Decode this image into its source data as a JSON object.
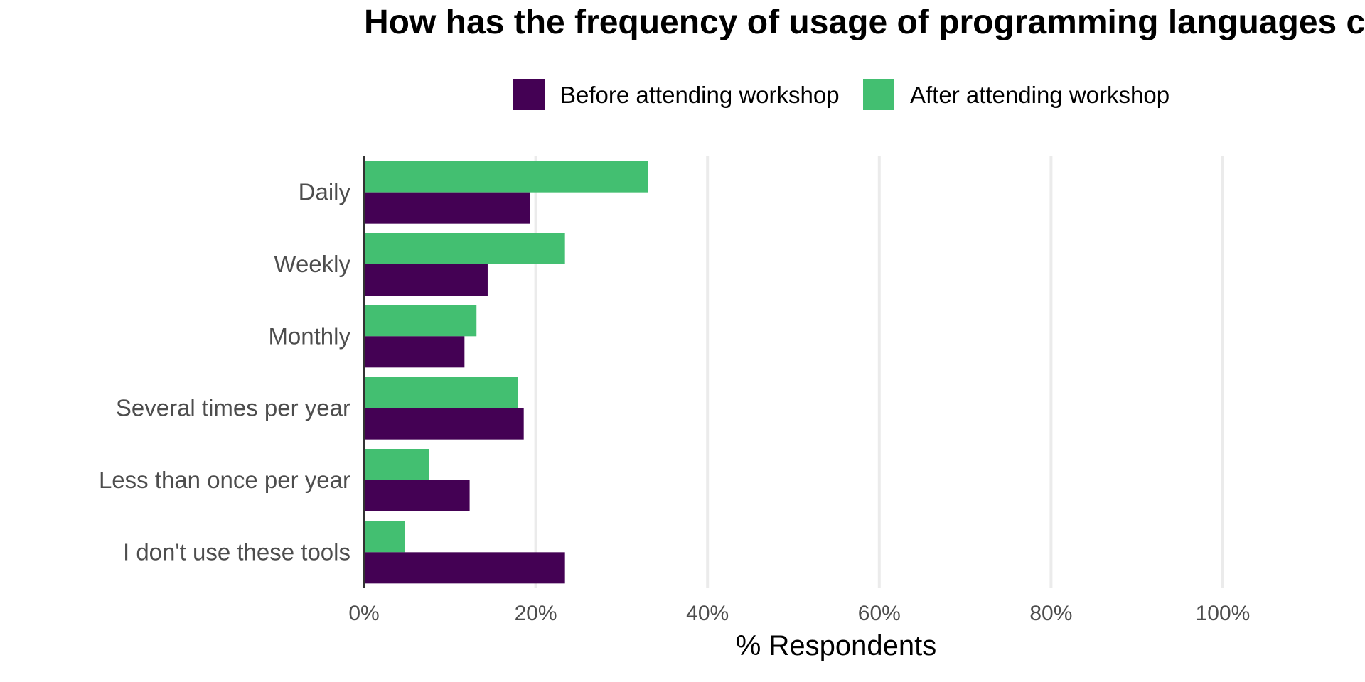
{
  "chart_data": {
    "type": "bar",
    "orientation": "horizontal",
    "title": "How has the frequency of usage of programming languages changed?",
    "categories": [
      "Daily",
      "Weekly",
      "Monthly",
      "Several times per year",
      "Less than once per year",
      "I don't use these tools"
    ],
    "series": [
      {
        "name": "Before attending workshop",
        "color": "#440154",
        "values": [
          19.3,
          14.4,
          11.7,
          18.6,
          12.3,
          23.4
        ]
      },
      {
        "name": "After attending workshop",
        "color": "#43bf71",
        "values": [
          33.1,
          23.4,
          13.1,
          17.9,
          7.6,
          4.8
        ]
      }
    ],
    "xlabel": "% Respondents",
    "ylabel": "",
    "xlim": [
      0,
      100
    ],
    "x_ticks": [
      "0%",
      "20%",
      "40%",
      "60%",
      "80%",
      "100%"
    ],
    "grid": true,
    "legend_position": "top"
  }
}
